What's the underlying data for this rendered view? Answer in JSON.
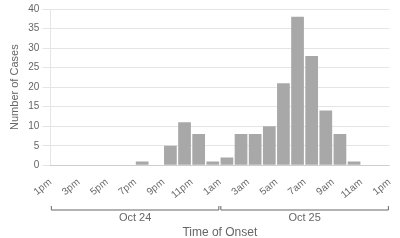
{
  "chart_data": {
    "type": "histogram",
    "values": [
      0,
      0,
      0,
      0,
      0,
      0,
      1,
      0,
      5,
      11,
      8,
      1,
      2,
      8,
      8,
      10,
      21,
      38,
      28,
      14,
      8,
      1,
      0,
      0
    ],
    "bins": [
      0,
      1,
      2,
      3,
      4,
      5,
      6,
      7,
      8,
      9,
      10,
      11,
      12,
      13,
      14,
      15,
      16,
      17,
      18,
      19,
      20,
      21,
      22,
      23,
      24
    ],
    "xlim": [
      0,
      24
    ],
    "xticks": [
      {
        "value": 0,
        "label": "1pm"
      },
      {
        "value": 2,
        "label": "3pm"
      },
      {
        "value": 4,
        "label": "5pm"
      },
      {
        "value": 6,
        "label": "7pm"
      },
      {
        "value": 8,
        "label": "9pm"
      },
      {
        "value": 10,
        "label": "11pm"
      },
      {
        "value": 12,
        "label": "1am"
      },
      {
        "value": 14,
        "label": "3am"
      },
      {
        "value": 16,
        "label": "5am"
      },
      {
        "value": 18,
        "label": "7am"
      },
      {
        "value": 20,
        "label": "9am"
      },
      {
        "value": 22,
        "label": "11am"
      },
      {
        "value": 24,
        "label": "1pm"
      }
    ],
    "ylim": [
      0,
      40
    ],
    "yticks": [
      0,
      5,
      10,
      15,
      20,
      25,
      30,
      35,
      40
    ],
    "xlabel": "Time of Onset",
    "ylabel": "Number of Cases",
    "color": "#a8a8a8",
    "grid": true,
    "annotations": [
      {
        "text": "Oct 24",
        "x": [
          0,
          12
        ]
      },
      {
        "text": "Oct 25",
        "x": [
          12,
          24
        ]
      }
    ]
  }
}
